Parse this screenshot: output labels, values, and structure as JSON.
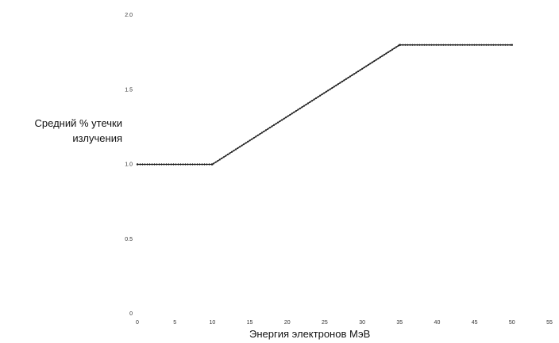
{
  "chart_data": {
    "type": "line",
    "title": "",
    "xlabel": "Энергия электронов МэВ",
    "ylabel_line1": "Средний % утечки",
    "ylabel_line2": "излучения",
    "xlim": [
      0,
      55
    ],
    "ylim": [
      0,
      2.0
    ],
    "x_ticks": [
      0,
      5,
      10,
      15,
      20,
      25,
      30,
      35,
      40,
      45,
      50,
      55
    ],
    "y_ticks": [
      0,
      0.5,
      1.0,
      1.5,
      2.0
    ],
    "y_tick_labels": [
      "0",
      "0.5",
      "1.0",
      "1.5",
      "2.0"
    ],
    "grid": false,
    "legend": "none",
    "line_color": "#1a1a1a",
    "series": [
      {
        "x": [
          0,
          10,
          35,
          50
        ],
        "y": [
          1.0,
          1.0,
          1.8,
          1.8
        ]
      }
    ]
  }
}
